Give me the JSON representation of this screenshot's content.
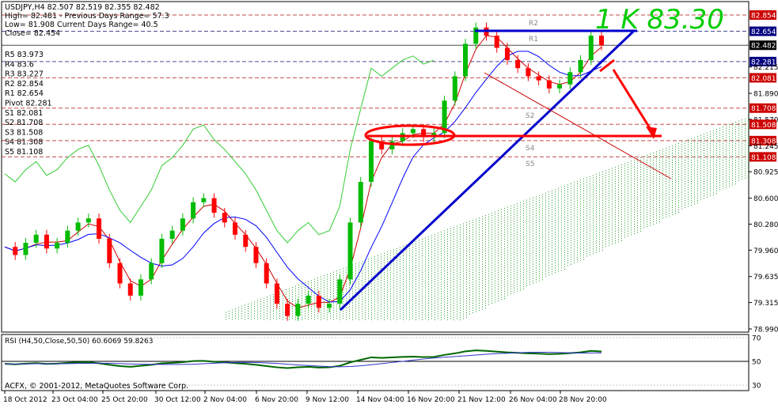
{
  "header": {
    "symbol_line": "USDJPY,H4  82.507 82.519 82.355 82.482",
    "high_line": "High= 82.481 - Previous Days Range= 57.3",
    "low_line": "Low= 81.908   Current Days Range= 40.5",
    "close_line": "Close= 82.454"
  },
  "pivot_panel": {
    "lines": [
      "R5 83.973",
      "R4 83.6",
      "R3 83.227",
      "R2 82.854",
      "R1 82.654",
      "Pivot 82.281",
      "S1 82.081",
      "S2 81.708",
      "S3 81.508",
      "S4 81.308",
      "S5 81.108"
    ]
  },
  "level_labels": {
    "r2": "R2",
    "r1": "R1",
    "s2": "S2",
    "s4": "S4",
    "s5": "S5"
  },
  "annotation": {
    "text": "1 K 83.30",
    "color": "#00cc00"
  },
  "footer": {
    "copyright": "ACFX, © 2001-2012, MetaQuotes Software Corp."
  },
  "rsi": {
    "label": "RSI (H4,50,Close,50,50) 60.6069 59.8263",
    "ticks": [
      "70",
      "50",
      "30"
    ]
  },
  "colors": {
    "bull_candle": "#00bb00",
    "bear_candle": "#ff0000",
    "kijun": "#0000ff",
    "tenkan": "#cc0000",
    "chikou": "#33cc33",
    "trendline": "#0000cc",
    "annotation": "#ff0000"
  },
  "chart_data": {
    "type": "candlestick",
    "symbol": "USDJPY",
    "timeframe": "H4",
    "x_ticks": [
      "18 Oct 2012",
      "23 Oct 04:00",
      "25 Oct 20:00",
      "30 Oct 12:00",
      "2 Nov 04:00",
      "6 Nov 20:00",
      "9 Nov 12:00",
      "14 Nov 04:00",
      "16 Nov 20:00",
      "21 Nov 12:00",
      "26 Nov 04:00",
      "28 Nov 20:00"
    ],
    "y_ticks": [
      82.854,
      82.654,
      82.482,
      82.281,
      82.215,
      82.081,
      81.89,
      81.708,
      81.57,
      81.508,
      81.308,
      81.245,
      81.108,
      80.925,
      80.6,
      80.28,
      79.96,
      79.635,
      79.315,
      78.99
    ],
    "y_tick_labels": [
      "82.854",
      "82.654",
      "82.482",
      "82.281",
      "82.215",
      "82.081",
      "81.890",
      "81.708",
      "81.570",
      "81.508",
      "81.308",
      "81.245",
      "81.108",
      "80.925",
      "80.600",
      "80.280",
      "79.960",
      "79.635",
      "79.315",
      "78.990"
    ],
    "highlighted_levels": [
      {
        "label": "82.854",
        "style": "r"
      },
      {
        "label": "82.654",
        "style": "b"
      },
      {
        "label": "82.482",
        "style": "k"
      },
      {
        "label": "82.281",
        "style": "b"
      },
      {
        "label": "82.081",
        "style": "r"
      },
      {
        "label": "81.708",
        "style": "r"
      },
      {
        "label": "81.508",
        "style": "r"
      },
      {
        "label": "81.308",
        "style": "r"
      },
      {
        "label": "81.108",
        "style": "r"
      }
    ],
    "ylim": [
      78.9,
      83.0
    ],
    "close_path": [
      80.0,
      79.9,
      80.05,
      80.15,
      79.98,
      80.05,
      80.2,
      80.3,
      80.35,
      80.1,
      79.8,
      79.55,
      79.4,
      79.6,
      79.8,
      80.1,
      80.2,
      80.35,
      80.55,
      80.6,
      80.42,
      80.3,
      80.15,
      80.0,
      79.8,
      79.55,
      79.3,
      79.15,
      79.3,
      79.4,
      79.25,
      79.3,
      79.6,
      80.3,
      80.8,
      81.3,
      81.2,
      81.3,
      81.4,
      81.45,
      81.35,
      81.4,
      81.8,
      82.1,
      82.5,
      82.7,
      82.6,
      82.45,
      82.3,
      82.2,
      82.1,
      82.05,
      81.95,
      82.0,
      82.15,
      82.3,
      82.6,
      82.48
    ],
    "rsi_last": [
      60.6069,
      59.8263
    ],
    "support_resistance": {
      "horizontal_resistance": 82.654,
      "target_zone": 81.308
    },
    "target_note": "1 K 83.30"
  }
}
